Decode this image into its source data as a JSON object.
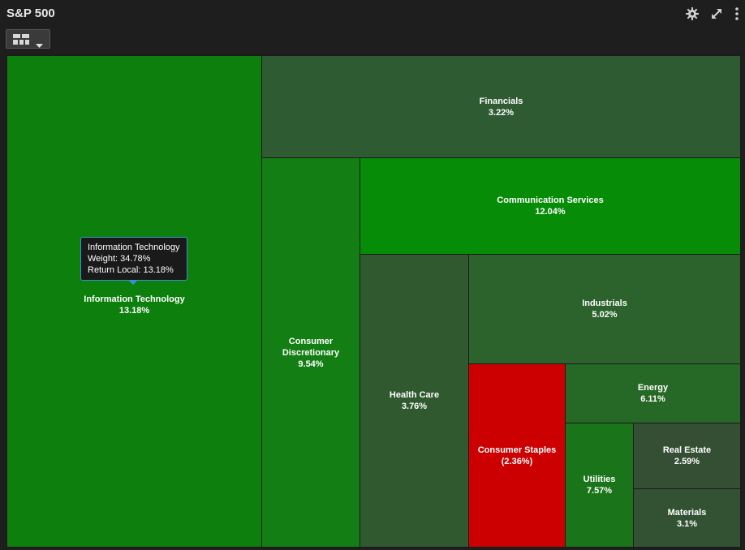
{
  "header": {
    "title": "S&P 500",
    "icons": [
      "gear-icon",
      "expand-icon",
      "more-vertical-icon"
    ]
  },
  "toolbar": {
    "view_icon": "treemap-view-icon",
    "dropdown_icon": "caret-down-icon"
  },
  "chart_data": {
    "type": "treemap",
    "size_metric": "Weight",
    "color_metric": "Return Local",
    "colors": {
      "strong_green": "#0a8f0a",
      "medium_green": "#117f11",
      "muted_green": "#305a30",
      "dark_green": "#2d5e2d",
      "negative_red": "#cc0000"
    },
    "sectors": [
      {
        "name": "Information Technology",
        "label": "Information Technology",
        "value_text": "13.18%",
        "return": 13.18,
        "color": "#0d7f0d"
      },
      {
        "name": "Financials",
        "label": "Financials",
        "value_text": "3.22%",
        "return": 3.22,
        "color": "#2f5b33"
      },
      {
        "name": "Consumer Discretionary",
        "label": "Consumer Discretionary",
        "value_text": "9.54%",
        "return": 9.54,
        "color": "#137e13"
      },
      {
        "name": "Communication Services",
        "label": "Communication Services",
        "value_text": "12.04%",
        "return": 12.04,
        "color": "#078c07"
      },
      {
        "name": "Health Care",
        "label": "Health Care",
        "value_text": "3.76%",
        "return": 3.76,
        "color": "#30592f"
      },
      {
        "name": "Industrials",
        "label": "Industrials",
        "value_text": "5.02%",
        "return": 5.02,
        "color": "#2c622c"
      },
      {
        "name": "Consumer Staples",
        "label": "Consumer Staples",
        "value_text": "(2.36%)",
        "return": -2.36,
        "color": "#cc0000"
      },
      {
        "name": "Energy",
        "label": "Energy",
        "value_text": "6.11%",
        "return": 6.11,
        "color": "#266826"
      },
      {
        "name": "Utilities",
        "label": "Utilities",
        "value_text": "7.57%",
        "return": 7.57,
        "color": "#1a741a"
      },
      {
        "name": "Real Estate",
        "label": "Real Estate",
        "value_text": "2.59%",
        "return": 2.59,
        "color": "#344f34"
      },
      {
        "name": "Materials",
        "label": "Materials",
        "value_text": "3.1%",
        "return": 3.1,
        "color": "#335234"
      }
    ],
    "tooltip": {
      "name": "Information Technology",
      "weight_line": "Weight: 34.78%",
      "return_line": "Return Local: 13.18%"
    }
  }
}
